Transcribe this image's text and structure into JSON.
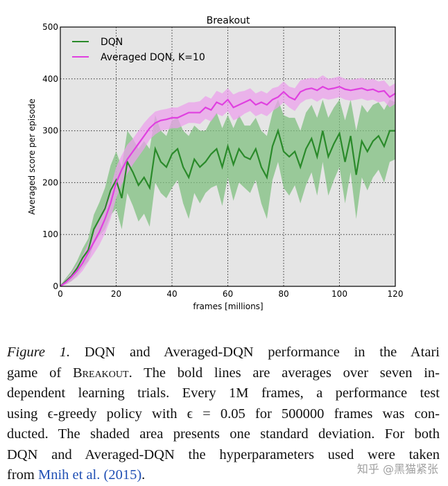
{
  "chart_data": {
    "type": "line",
    "title": "Breakout",
    "xlabel": "frames [millions]",
    "ylabel": "Averaged score per episode",
    "xlim": [
      0,
      120
    ],
    "ylim": [
      0,
      500
    ],
    "xticks": [
      0,
      20,
      40,
      60,
      80,
      100,
      120
    ],
    "yticks": [
      0,
      100,
      200,
      300,
      400,
      500
    ],
    "grid": true,
    "legend_position": "top-left",
    "x": [
      0,
      2,
      4,
      6,
      8,
      10,
      12,
      14,
      16,
      18,
      20,
      22,
      24,
      26,
      28,
      30,
      32,
      34,
      36,
      38,
      40,
      42,
      44,
      46,
      48,
      50,
      52,
      54,
      56,
      58,
      60,
      62,
      64,
      66,
      68,
      70,
      72,
      74,
      76,
      78,
      80,
      82,
      84,
      86,
      88,
      90,
      92,
      94,
      96,
      98,
      100,
      102,
      104,
      106,
      108,
      110,
      112,
      114,
      116,
      118,
      120
    ],
    "series": [
      {
        "name": "DQN",
        "color": "#2a8a2a",
        "band_color": "#7fbf7f",
        "values": [
          0,
          10,
          20,
          35,
          55,
          70,
          110,
          130,
          150,
          185,
          205,
          170,
          240,
          220,
          195,
          210,
          190,
          265,
          240,
          230,
          255,
          265,
          230,
          210,
          245,
          230,
          240,
          255,
          265,
          230,
          270,
          235,
          265,
          250,
          245,
          265,
          230,
          210,
          270,
          300,
          260,
          250,
          260,
          230,
          265,
          285,
          250,
          300,
          250,
          275,
          295,
          240,
          290,
          215,
          280,
          260,
          280,
          290,
          270,
          300,
          300
        ],
        "std": [
          2,
          6,
          10,
          14,
          18,
          22,
          28,
          32,
          40,
          48,
          55,
          60,
          60,
          65,
          70,
          70,
          75,
          65,
          60,
          60,
          65,
          60,
          70,
          80,
          65,
          70,
          60,
          65,
          70,
          75,
          60,
          70,
          65,
          60,
          65,
          60,
          70,
          80,
          65,
          60,
          70,
          75,
          65,
          70,
          70,
          65,
          75,
          60,
          75,
          70,
          65,
          80,
          70,
          85,
          70,
          75,
          70,
          65,
          70,
          60,
          55
        ]
      },
      {
        "name": "Averaged DQN, K=10",
        "color": "#e040e0",
        "band_color": "#eba0eb",
        "values": [
          0,
          8,
          18,
          30,
          45,
          65,
          85,
          105,
          130,
          160,
          200,
          225,
          245,
          260,
          275,
          290,
          305,
          315,
          320,
          322,
          325,
          325,
          330,
          335,
          335,
          335,
          345,
          340,
          355,
          350,
          360,
          345,
          350,
          355,
          360,
          350,
          355,
          350,
          360,
          365,
          375,
          365,
          360,
          375,
          380,
          382,
          378,
          385,
          380,
          382,
          385,
          380,
          378,
          380,
          382,
          378,
          380,
          375,
          377,
          365,
          372
        ],
        "std": [
          2,
          5,
          8,
          12,
          15,
          18,
          22,
          25,
          28,
          30,
          30,
          28,
          28,
          25,
          25,
          25,
          22,
          22,
          20,
          20,
          20,
          20,
          20,
          20,
          20,
          22,
          22,
          22,
          22,
          22,
          22,
          25,
          25,
          22,
          22,
          22,
          22,
          22,
          22,
          20,
          20,
          20,
          22,
          22,
          20,
          20,
          22,
          22,
          20,
          20,
          20,
          20,
          20,
          20,
          20,
          20,
          20,
          20,
          20,
          20,
          20
        ]
      }
    ]
  },
  "caption": {
    "fig_label": "Figure 1.",
    "l1": "DQN and Averaged-DQN performance in the Atari",
    "l2a": "game of",
    "l2b": "Breakout",
    "l2c": ". The bold lines are averages over seven in-",
    "l3": "dependent learning trials.  Every 1M frames, a performance test",
    "l4": "using ϵ-greedy policy with ϵ = 0.05 for 500000 frames was con-",
    "l5": "ducted. The shaded area presents one standard deviation. For both",
    "l6": "DQN and Averaged-DQN the hyperparameters used were taken",
    "l7a": "from",
    "l7b": "Mnih et al.",
    "l7c": "(2015)",
    "l7d": "."
  },
  "watermark": "知乎 @黑猫紧张"
}
